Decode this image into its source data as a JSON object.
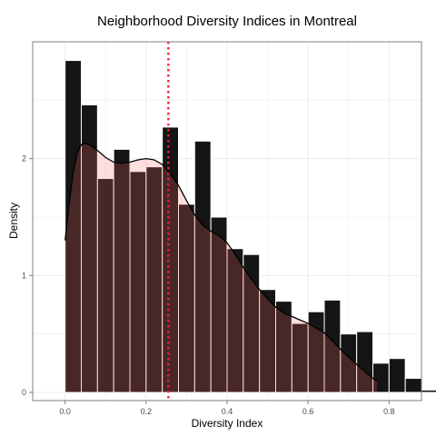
{
  "chart_data": {
    "type": "histogram",
    "title": "Neighborhood Diversity Indices in Montreal",
    "xlabel": "Diversity Index",
    "ylabel": "Density",
    "xlim": [
      -0.08,
      0.88
    ],
    "ylim": [
      -0.07,
      3.0
    ],
    "x_ticks": [
      0.0,
      0.2,
      0.4,
      0.6,
      0.8
    ],
    "x_tick_labels": [
      "0.0",
      "0.2",
      "0.4",
      "0.6",
      "0.8"
    ],
    "y_ticks": [
      0,
      1,
      2
    ],
    "y_tick_labels": [
      "0",
      "1",
      "2"
    ],
    "grid": true,
    "bin_width": 0.04,
    "bins": [
      {
        "x0": 0.0,
        "x1": 0.04,
        "value": 2.84
      },
      {
        "x0": 0.04,
        "x1": 0.08,
        "value": 2.46
      },
      {
        "x0": 0.08,
        "x1": 0.12,
        "value": 1.83
      },
      {
        "x0": 0.12,
        "x1": 0.16,
        "value": 2.08
      },
      {
        "x0": 0.16,
        "x1": 0.2,
        "value": 1.89
      },
      {
        "x0": 0.2,
        "x1": 0.24,
        "value": 1.93
      },
      {
        "x0": 0.24,
        "x1": 0.28,
        "value": 2.27
      },
      {
        "x0": 0.28,
        "x1": 0.32,
        "value": 1.61
      },
      {
        "x0": 0.32,
        "x1": 0.36,
        "value": 2.15
      },
      {
        "x0": 0.36,
        "x1": 0.4,
        "value": 1.5
      },
      {
        "x0": 0.4,
        "x1": 0.44,
        "value": 1.23
      },
      {
        "x0": 0.44,
        "x1": 0.48,
        "value": 1.18
      },
      {
        "x0": 0.48,
        "x1": 0.52,
        "value": 0.88
      },
      {
        "x0": 0.52,
        "x1": 0.56,
        "value": 0.78
      },
      {
        "x0": 0.56,
        "x1": 0.6,
        "value": 0.59
      },
      {
        "x0": 0.6,
        "x1": 0.64,
        "value": 0.69
      },
      {
        "x0": 0.64,
        "x1": 0.68,
        "value": 0.79
      },
      {
        "x0": 0.68,
        "x1": 0.72,
        "value": 0.5
      },
      {
        "x0": 0.72,
        "x1": 0.76,
        "value": 0.52
      },
      {
        "x0": 0.76,
        "x1": 0.8,
        "value": 0.25
      },
      {
        "x0": 0.8,
        "x1": 0.84,
        "value": 0.29
      },
      {
        "x0": 0.84,
        "x1": 0.88,
        "value": 0.12
      },
      {
        "x0": 0.88,
        "x1": 0.92,
        "value": 0.02
      }
    ],
    "density_curve": {
      "x": [
        0.0,
        0.01,
        0.02,
        0.03,
        0.04,
        0.05,
        0.06,
        0.08,
        0.1,
        0.12,
        0.14,
        0.16,
        0.18,
        0.2,
        0.22,
        0.24,
        0.26,
        0.28,
        0.3,
        0.32,
        0.34,
        0.36,
        0.38,
        0.4,
        0.42,
        0.44,
        0.46,
        0.48,
        0.5,
        0.52,
        0.54,
        0.56,
        0.58,
        0.6,
        0.62,
        0.64,
        0.66,
        0.68,
        0.7,
        0.72,
        0.74,
        0.76,
        0.77
      ],
      "y": [
        1.3,
        1.62,
        1.88,
        2.05,
        2.12,
        2.13,
        2.12,
        2.07,
        2.01,
        1.97,
        1.96,
        1.97,
        1.99,
        2.0,
        1.99,
        1.95,
        1.87,
        1.77,
        1.64,
        1.52,
        1.43,
        1.38,
        1.34,
        1.28,
        1.18,
        1.07,
        0.97,
        0.88,
        0.8,
        0.73,
        0.68,
        0.65,
        0.62,
        0.59,
        0.55,
        0.51,
        0.44,
        0.37,
        0.3,
        0.24,
        0.18,
        0.12,
        0.1
      ]
    },
    "mean_line": {
      "x": 0.255,
      "color": "#ff1a33",
      "style": "dotted"
    },
    "colors": {
      "bar_fill": "#151515",
      "density_fill": "#ff6b6b",
      "density_line": "#000000",
      "panel_border": "#7f7f7f",
      "grid": "#ececec"
    }
  }
}
